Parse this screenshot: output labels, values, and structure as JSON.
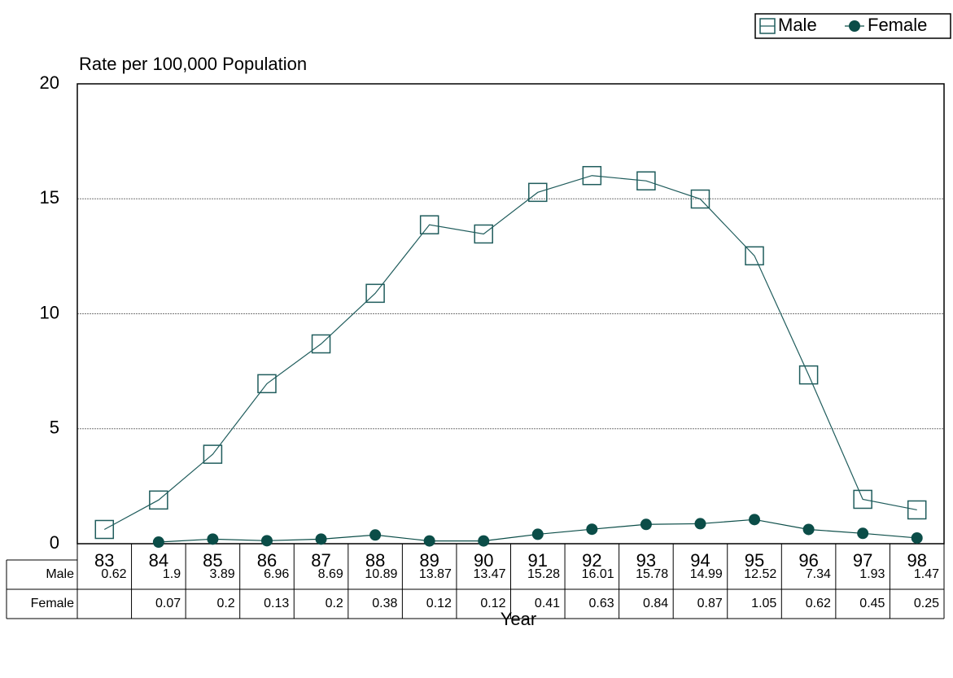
{
  "chart_data": {
    "type": "line",
    "y_axis_title": "Rate per 100,000 Population",
    "x_axis_title": "Year",
    "categories": [
      "83",
      "84",
      "85",
      "86",
      "87",
      "88",
      "89",
      "90",
      "91",
      "92",
      "93",
      "94",
      "95",
      "96",
      "97",
      "98"
    ],
    "series": [
      {
        "name": "Male",
        "color": "#1f5c5c",
        "marker": "square",
        "values": [
          0.62,
          1.9,
          3.89,
          6.96,
          8.69,
          10.89,
          13.87,
          13.47,
          15.28,
          16.01,
          15.78,
          14.99,
          12.52,
          7.34,
          1.93,
          1.47
        ]
      },
      {
        "name": "Female",
        "color": "#0b4d48",
        "marker": "circle",
        "values": [
          null,
          0.07,
          0.2,
          0.13,
          0.2,
          0.38,
          0.12,
          0.12,
          0.41,
          0.63,
          0.84,
          0.87,
          1.05,
          0.62,
          0.45,
          0.25
        ]
      }
    ],
    "ylim": [
      0,
      20
    ],
    "yticks": [
      0,
      5,
      10,
      15,
      20
    ],
    "grid": true,
    "legend": "top-right",
    "data_table": true
  }
}
